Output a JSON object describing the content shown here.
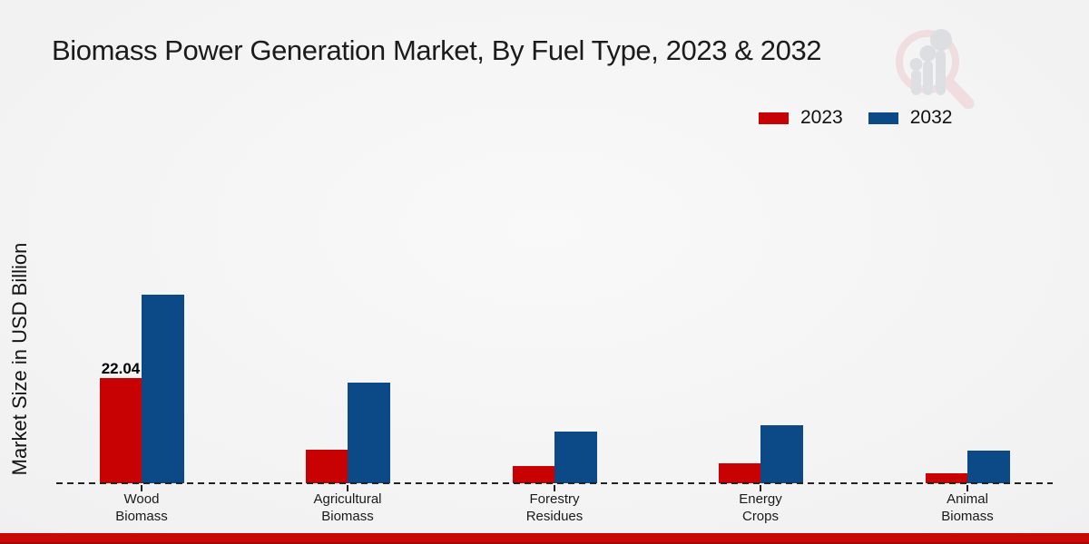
{
  "header": {
    "title": "Biomass Power Generation Market, By Fuel Type, 2023 & 2032"
  },
  "axes": {
    "y_label": "Market Size in USD Billion"
  },
  "legend": {
    "position": "top-right",
    "items": [
      {
        "label": "2023",
        "color": "#c80202"
      },
      {
        "label": "2032",
        "color": "#0b4a87"
      }
    ]
  },
  "colors": {
    "series_2023": "#c80202",
    "series_2032": "#0b4a87",
    "footer_accent": "#c90808",
    "watermark_ring": "#edccd0",
    "watermark_bars": "#ccced4"
  },
  "chart_data": {
    "type": "bar",
    "title": "Biomass Power Generation Market, By Fuel Type, 2023 & 2032",
    "categories": [
      "Wood Biomass",
      "Agricultural Biomass",
      "Forestry Residues",
      "Energy Crops",
      "Animal Biomass"
    ],
    "series": [
      {
        "name": "2023",
        "color": "#c80202",
        "values": [
          22.04,
          7.0,
          3.6,
          4.2,
          2.1
        ]
      },
      {
        "name": "2032",
        "color": "#0b4a87",
        "values": [
          39.5,
          21.1,
          10.8,
          12.2,
          6.9
        ]
      }
    ],
    "xlabel": "",
    "ylabel": "Market Size in USD Billion",
    "ylim": [
      0,
      42
    ],
    "grid": false,
    "baseline_style": "dashed",
    "legend_position": "top-right",
    "data_labels": [
      {
        "series": "2023",
        "category": "Wood Biomass",
        "text": "22.04"
      }
    ]
  }
}
